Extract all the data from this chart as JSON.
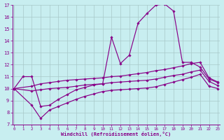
{
  "xlabel": "Windchill (Refroidissement éolien,°C)",
  "bg_color": "#c8eef0",
  "line_color": "#880088",
  "grid_color": "#a8c8c8",
  "xlim_min": 0,
  "xlim_max": 23,
  "ylim_min": 7,
  "ylim_max": 17,
  "xticks": [
    0,
    1,
    2,
    3,
    4,
    5,
    6,
    7,
    8,
    9,
    10,
    11,
    12,
    13,
    14,
    15,
    16,
    17,
    18,
    19,
    20,
    21,
    22,
    23
  ],
  "yticks": [
    7,
    8,
    9,
    10,
    11,
    12,
    13,
    14,
    15,
    16,
    17
  ],
  "line1_x": [
    0,
    1,
    2,
    3,
    4,
    5,
    6,
    7,
    8,
    9,
    10,
    11,
    12,
    13,
    14,
    15,
    16,
    17,
    18,
    19,
    20,
    21,
    22,
    23
  ],
  "line1_y": [
    10.0,
    11.0,
    11.0,
    8.5,
    8.6,
    9.1,
    9.5,
    9.9,
    10.1,
    10.3,
    10.4,
    14.3,
    12.1,
    12.8,
    15.5,
    16.3,
    17.0,
    17.1,
    16.5,
    12.2,
    12.2,
    11.8,
    10.8,
    10.5
  ],
  "line2_x": [
    0,
    2,
    3,
    4,
    5,
    6,
    7,
    8,
    9,
    10,
    11,
    12,
    13,
    14,
    15,
    16,
    17,
    18,
    19,
    20,
    21,
    22,
    23
  ],
  "line2_y": [
    10.0,
    10.2,
    10.4,
    10.5,
    10.6,
    10.7,
    10.75,
    10.8,
    10.85,
    10.9,
    11.0,
    11.05,
    11.15,
    11.25,
    11.35,
    11.5,
    11.6,
    11.75,
    11.9,
    12.1,
    12.2,
    10.9,
    10.55
  ],
  "line3_x": [
    0,
    2,
    3,
    4,
    5,
    6,
    7,
    8,
    9,
    10,
    11,
    12,
    13,
    14,
    15,
    16,
    17,
    18,
    19,
    20,
    21,
    22,
    23
  ],
  "line3_y": [
    10.0,
    9.8,
    9.9,
    10.0,
    10.05,
    10.1,
    10.2,
    10.3,
    10.35,
    10.4,
    10.5,
    10.55,
    10.6,
    10.65,
    10.7,
    10.8,
    10.95,
    11.1,
    11.2,
    11.4,
    11.55,
    10.6,
    10.25
  ],
  "line4_x": [
    0,
    2,
    3,
    4,
    5,
    6,
    7,
    8,
    9,
    10,
    11,
    12,
    13,
    14,
    15,
    16,
    17,
    18,
    19,
    20,
    21,
    22,
    23
  ],
  "line4_y": [
    10.0,
    8.6,
    7.5,
    8.2,
    8.5,
    8.8,
    9.1,
    9.35,
    9.55,
    9.75,
    9.85,
    9.9,
    9.95,
    10.0,
    10.05,
    10.15,
    10.35,
    10.55,
    10.75,
    10.95,
    11.2,
    10.2,
    10.0
  ]
}
